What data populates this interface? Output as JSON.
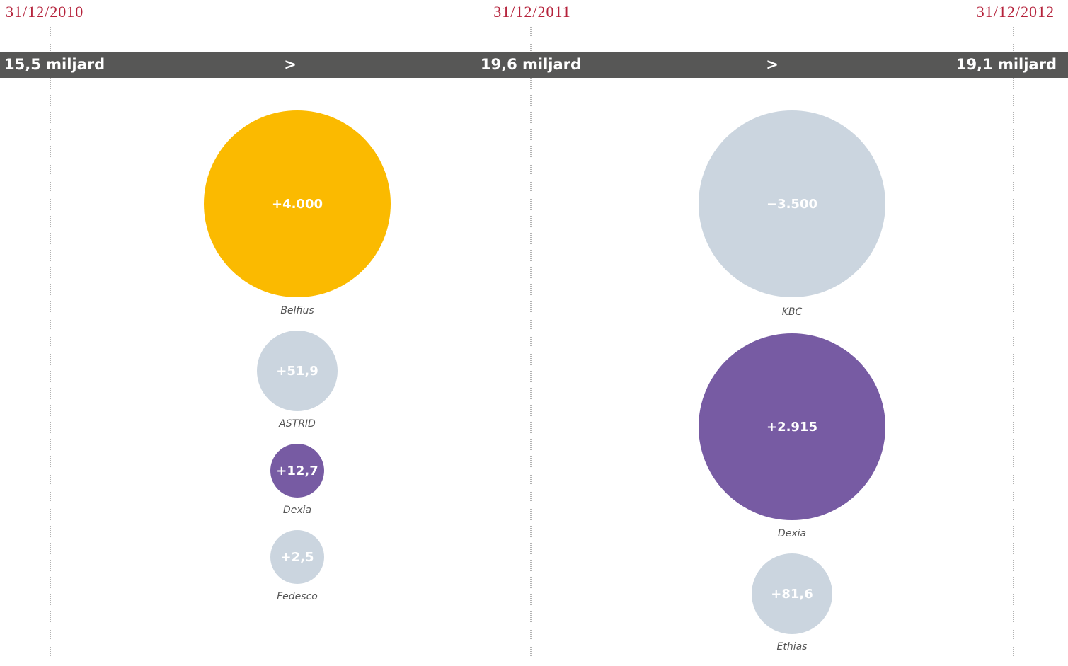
{
  "timeline": {
    "dates": [
      "31/12/2010",
      "31/12/2011",
      "31/12/2012"
    ],
    "totals": [
      "15,5 miljard",
      "19,6 miljard",
      "19,1 miljard"
    ],
    "arrows": [
      ">",
      ">"
    ]
  },
  "columns": [
    {
      "items": [
        {
          "value": "+4.000",
          "name": "Belfius",
          "color": "#fbba00"
        },
        {
          "value": "+51,9",
          "name": "ASTRID",
          "color": "#cbd5df"
        },
        {
          "value": "+12,7",
          "name": "Dexia",
          "color": "#775ba3"
        },
        {
          "value": "+2,5",
          "name": "Fedesco",
          "color": "#cbd5df"
        }
      ]
    },
    {
      "items": [
        {
          "value": "−3.500",
          "name": "KBC",
          "color": "#cbd5df"
        },
        {
          "value": "+2.915",
          "name": "Dexia",
          "color": "#775ba3"
        },
        {
          "value": "+81,6",
          "name": "Ethias",
          "color": "#cbd5df"
        }
      ]
    }
  ]
}
